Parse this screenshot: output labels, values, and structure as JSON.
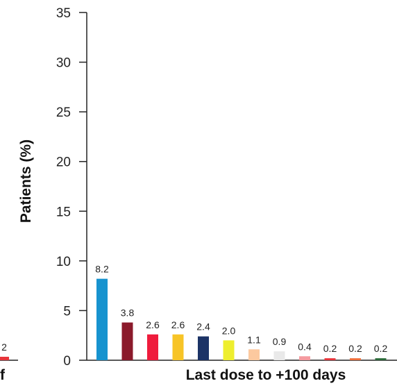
{
  "chart_data": {
    "type": "bar",
    "ylabel": "Patients (%)",
    "xlabel": "Last dose to +100 days",
    "ylim": [
      0,
      35
    ],
    "yticks": [
      0,
      5,
      10,
      15,
      20,
      25,
      30,
      35
    ],
    "grid": false,
    "values": [
      8.2,
      3.8,
      2.6,
      2.6,
      2.4,
      2.0,
      1.1,
      0.9,
      0.4,
      0.2,
      0.2,
      0.2
    ],
    "data_labels": [
      "8.2",
      "3.8",
      "2.6",
      "2.6",
      "2.4",
      "2.0",
      "1.1",
      "0.9",
      "0.4",
      "0.2",
      "0.2",
      "0.2"
    ],
    "colors": [
      "#1793cf",
      "#8b1a2b",
      "#ef1c3c",
      "#f7c427",
      "#1c3366",
      "#eeee2e",
      "#fcc99f",
      "#e9e9e9",
      "#f59ba0",
      "#e8353b",
      "#f0703c",
      "#2b6b3a"
    ]
  },
  "cropped_left_panel": {
    "partial_label": "2",
    "partial_xlabel": "f",
    "bar_color": "#e8353b"
  }
}
